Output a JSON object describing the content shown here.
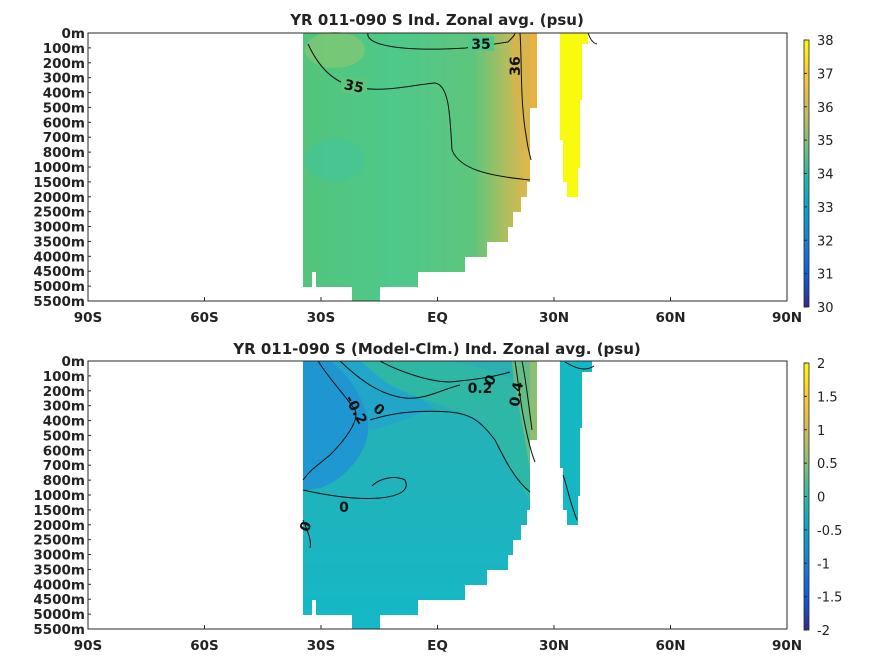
{
  "chart_data": [
    {
      "type": "heatmap",
      "title": "YR 011-090 S Ind. Zonal avg. (psu)",
      "x_ticks": [
        "90S",
        "60S",
        "30S",
        "EQ",
        "30N",
        "60N",
        "90N"
      ],
      "y_ticks": [
        "0m",
        "100m",
        "200m",
        "300m",
        "400m",
        "500m",
        "600m",
        "700m",
        "800m",
        "1000m",
        "1500m",
        "2000m",
        "2500m",
        "3000m",
        "3500m",
        "4000m",
        "4500m",
        "5000m",
        "5500m"
      ],
      "colorbar": {
        "min": 30,
        "max": 38,
        "ticks": [
          "30",
          "31",
          "32",
          "33",
          "34",
          "35",
          "36",
          "37",
          "38"
        ]
      },
      "contour_labels": [
        "35",
        "35",
        "36"
      ],
      "grid": false
    },
    {
      "type": "heatmap",
      "title": "YR 011-090 S (Model-Clm.) Ind. Zonal avg. (psu)",
      "x_ticks": [
        "90S",
        "60S",
        "30S",
        "EQ",
        "30N",
        "60N",
        "90N"
      ],
      "y_ticks": [
        "0m",
        "100m",
        "200m",
        "300m",
        "400m",
        "500m",
        "600m",
        "700m",
        "800m",
        "1000m",
        "1500m",
        "2000m",
        "2500m",
        "3000m",
        "3500m",
        "4000m",
        "4500m",
        "5000m",
        "5500m"
      ],
      "colorbar": {
        "min": -2,
        "max": 2,
        "ticks": [
          "-2",
          "-1.5",
          "-1",
          "-0.5",
          "0",
          "0.5",
          "1",
          "1.5",
          "2"
        ]
      },
      "contour_labels": [
        "-0.2",
        "0",
        "0.2",
        "0",
        "0.4",
        "0",
        "0"
      ],
      "grid": false
    }
  ],
  "colors": {
    "parula_low": "#352a87",
    "parula_mid": "#1fb6b8",
    "parula_high": "#f9fb0e",
    "frame": "#2a2a2a"
  }
}
